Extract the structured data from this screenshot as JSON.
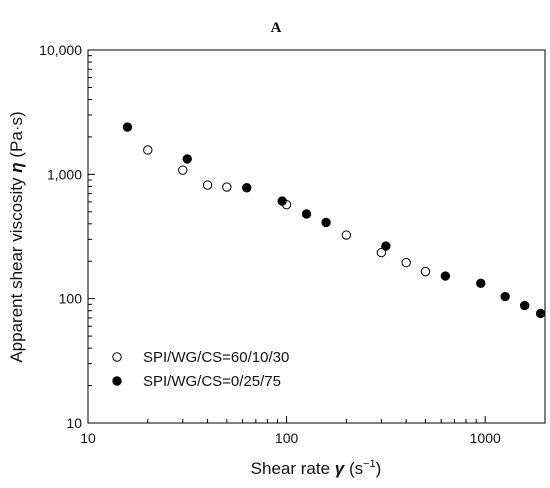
{
  "chart_data": {
    "type": "scatter",
    "panel_label": "A",
    "xlabel": {
      "prefix": "Shear rate ",
      "symbol": "γ",
      "unit_open": " (s",
      "unit_exp": "−1",
      "unit_close": ")"
    },
    "ylabel": {
      "prefix": "Apparent shear viscosity  ",
      "symbol": "η",
      "unit": "  (Pa·s)"
    },
    "xscale": "log",
    "yscale": "log",
    "xlim": [
      10,
      2000
    ],
    "ylim": [
      10,
      10000
    ],
    "xticks": [
      10,
      100,
      1000
    ],
    "xtick_labels": [
      "10",
      "100",
      "1000"
    ],
    "yticks": [
      10,
      100,
      1000,
      10000
    ],
    "ytick_labels": [
      "10",
      "100",
      "1,000",
      "10,000"
    ],
    "legend": "bottom-left",
    "series": [
      {
        "name": "SPI/WG/CS=60/10/30",
        "marker": "open-circle",
        "color": "#000000",
        "x": [
          20,
          30,
          40,
          50,
          100,
          200,
          300,
          400,
          500
        ],
        "y": [
          1570,
          1080,
          820,
          790,
          570,
          325,
          235,
          195,
          165
        ]
      },
      {
        "name": "SPI/WG/CS=0/25/75",
        "marker": "filled-circle",
        "color": "#000000",
        "x": [
          15.8,
          31.6,
          63,
          95,
          126,
          158,
          316,
          630,
          950,
          1260,
          1580,
          1900
        ],
        "y": [
          2400,
          1330,
          780,
          610,
          480,
          410,
          265,
          152,
          133,
          104,
          88,
          76
        ]
      }
    ]
  }
}
